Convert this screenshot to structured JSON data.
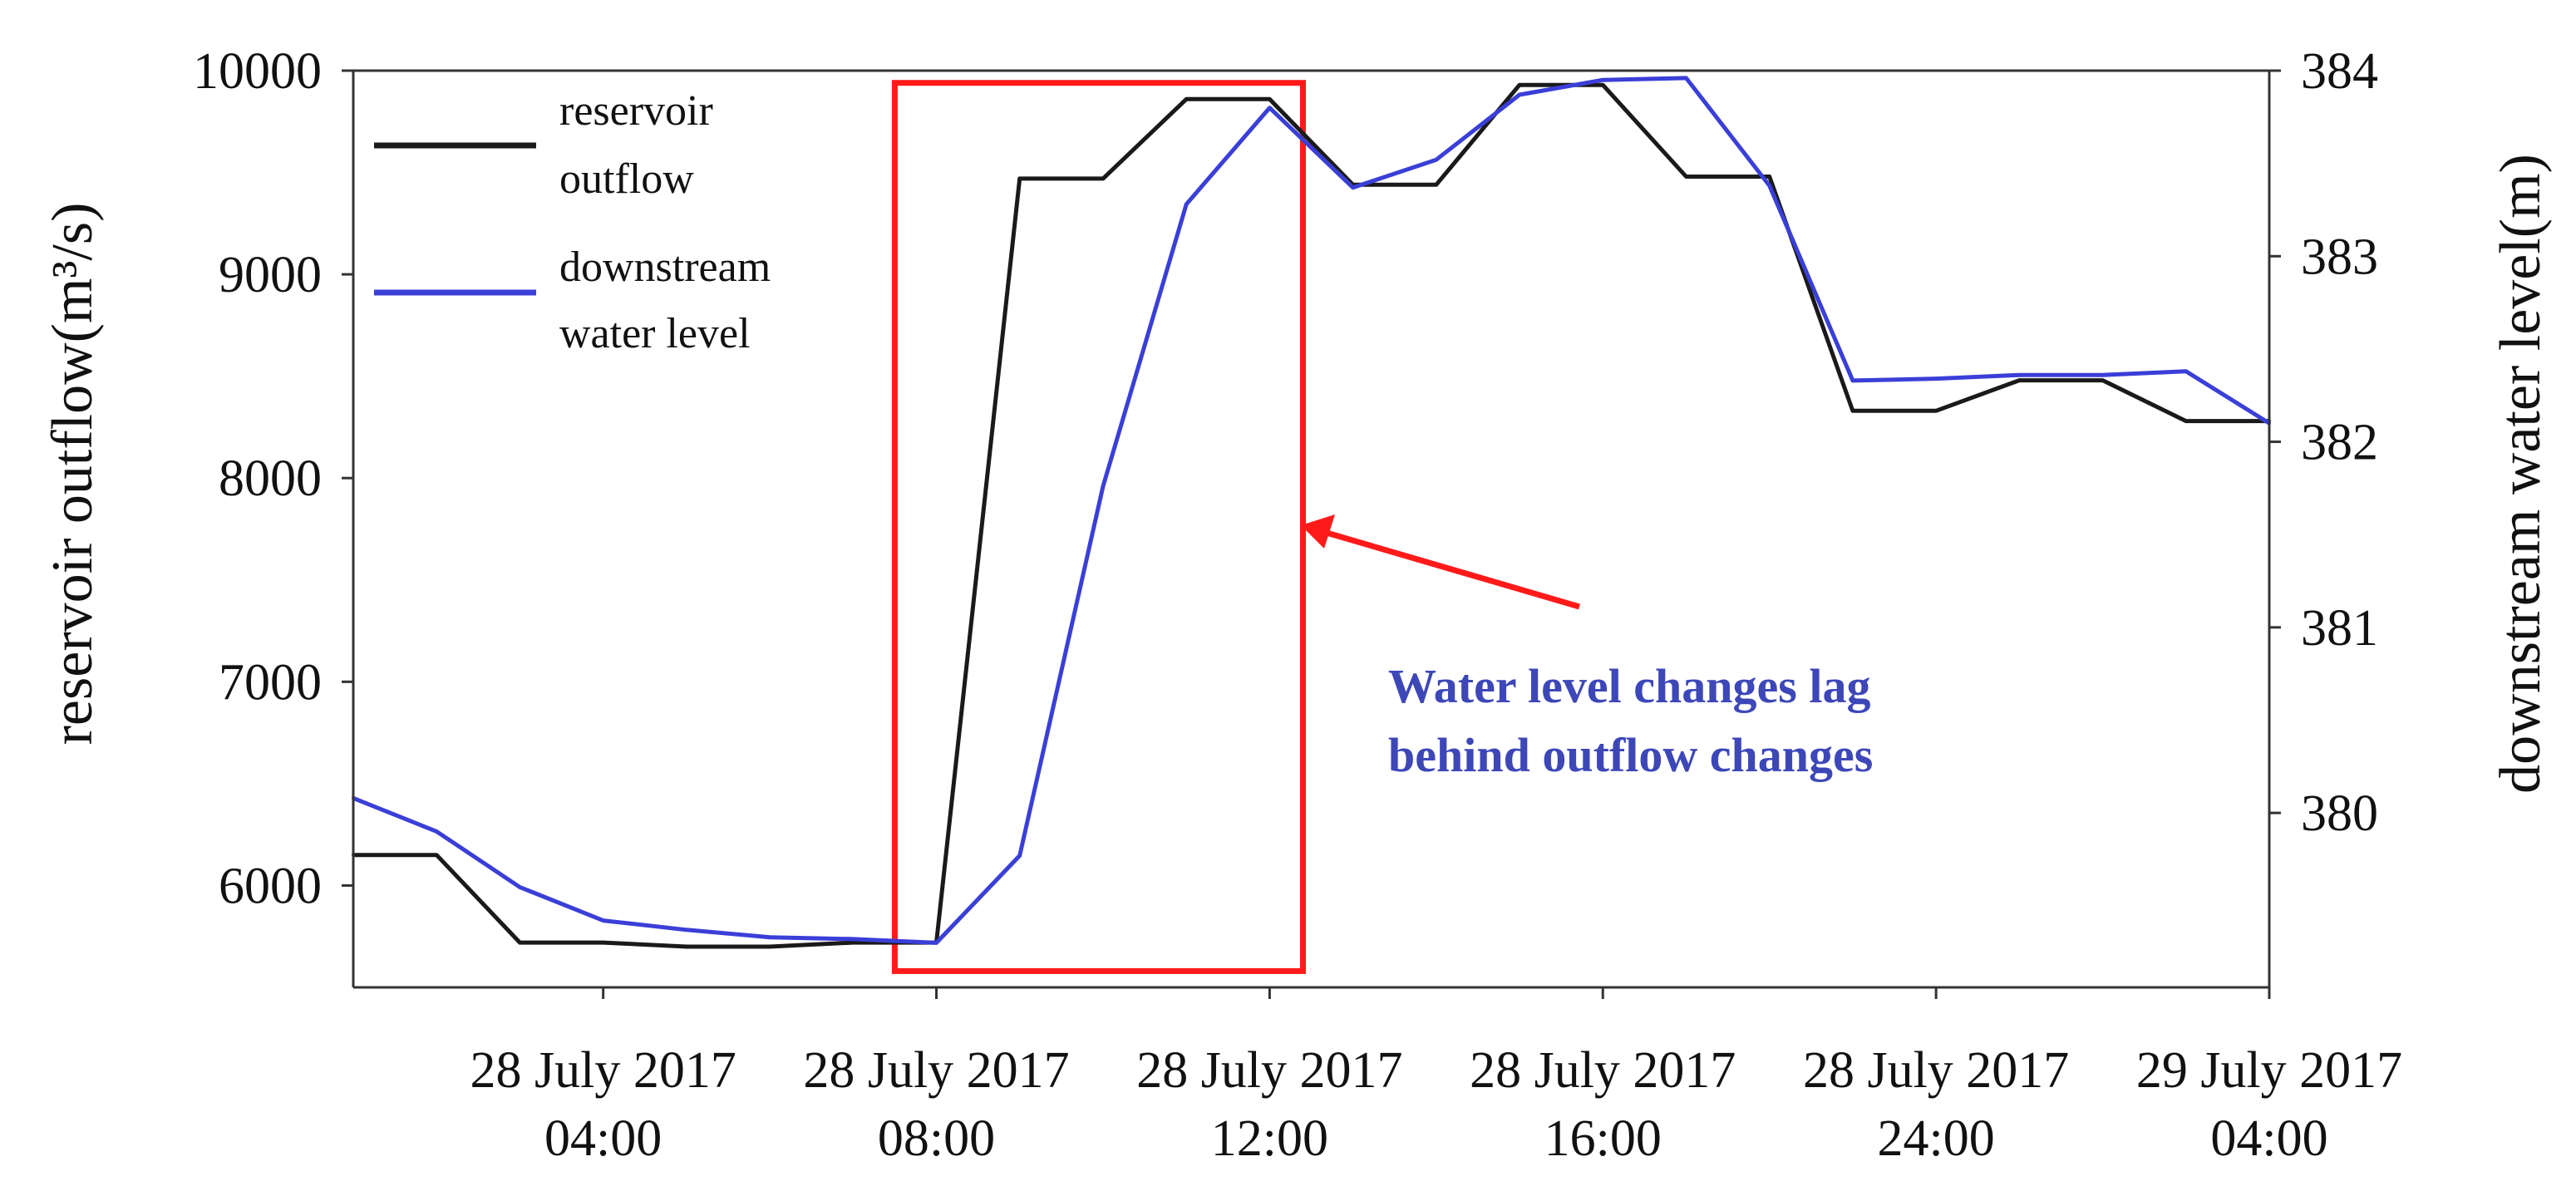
{
  "chart_data": {
    "type": "line",
    "title": "",
    "x_tick_labels": [
      {
        "x": 3,
        "line1": "28 July 2017",
        "line2": "04:00"
      },
      {
        "x": 7,
        "line1": "28 July 2017",
        "line2": "08:00"
      },
      {
        "x": 11,
        "line1": "28 July 2017",
        "line2": "12:00"
      },
      {
        "x": 15,
        "line1": "28 July 2017",
        "line2": "16:00"
      },
      {
        "x": 19,
        "line1": "28 July 2017",
        "line2": "24:00"
      },
      {
        "x": 23,
        "line1": "29 July 2017",
        "line2": "04:00"
      }
    ],
    "xlim": [
      0,
      23
    ],
    "left_axis": {
      "label": "reservoir outflow(m³/s)",
      "ylim": [
        5500,
        10000
      ],
      "ticks": [
        6000,
        7000,
        8000,
        9000,
        10000
      ]
    },
    "right_axis": {
      "label": "downstream water level(m)",
      "ylim": [
        379.06,
        384.0
      ],
      "ticks": [
        380,
        381,
        382,
        383,
        384
      ]
    },
    "series": [
      {
        "name": "reservoir outflow",
        "axis": "left",
        "color": "#1a1a1a",
        "x": [
          0,
          1,
          2,
          3,
          4,
          5,
          6,
          7,
          8,
          9,
          10,
          11,
          12,
          13,
          14,
          15,
          16,
          17,
          18,
          19,
          20,
          21,
          22,
          23
        ],
        "values": [
          6150,
          6150,
          5720,
          5720,
          5700,
          5700,
          5720,
          5720,
          9470,
          9470,
          9860,
          9860,
          9440,
          9440,
          9930,
          9930,
          9480,
          9480,
          8330,
          8330,
          8480,
          8480,
          8280,
          8280
        ]
      },
      {
        "name": "downstream water level",
        "axis": "right",
        "color": "#3a3fd8",
        "x": [
          0,
          1,
          2,
          3,
          4,
          5,
          6,
          7,
          8,
          9,
          10,
          11,
          12,
          13,
          14,
          15,
          16,
          17,
          18,
          19,
          20,
          21,
          22,
          23
        ],
        "values": [
          380.08,
          379.9,
          379.6,
          379.42,
          379.37,
          379.33,
          379.32,
          379.3,
          379.77,
          381.76,
          383.28,
          383.8,
          383.37,
          383.52,
          383.87,
          383.95,
          383.96,
          383.38,
          382.33,
          382.34,
          382.36,
          382.36,
          382.38,
          382.1
        ]
      }
    ],
    "legend": {
      "placement": "top-left",
      "entries": [
        {
          "line1": "reservoir",
          "line2": "outflow",
          "color": "#1a1a1a"
        },
        {
          "line1": "downstream",
          "line2": "water level",
          "color": "#3a3fd8"
        }
      ]
    },
    "highlight_box": {
      "x_from": 6.5,
      "x_to": 11.4,
      "y_from": 5580,
      "y_to": 9940,
      "color": "#ff1a1a"
    },
    "annotation": {
      "line1": "Water level changes lag",
      "line2": "behind outflow changes",
      "color": "#3d47b8",
      "arrow_color": "#ff1a1a"
    }
  }
}
